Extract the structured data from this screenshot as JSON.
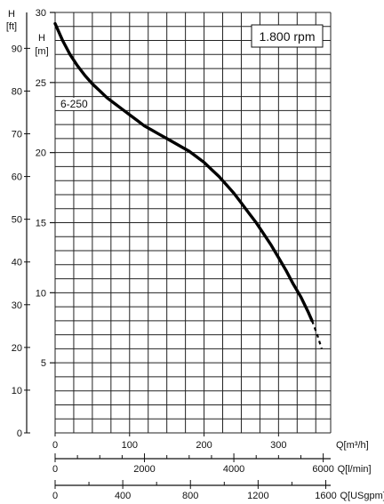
{
  "chart_data": {
    "type": "line",
    "rpm_label": "1.800 rpm",
    "series": [
      {
        "name": "6-250",
        "solid": [
          [
            0,
            29.2
          ],
          [
            10,
            28.0
          ],
          [
            20,
            27.0
          ],
          [
            30,
            26.2
          ],
          [
            40,
            25.5
          ],
          [
            50,
            24.9
          ],
          [
            60,
            24.4
          ],
          [
            70,
            23.9
          ],
          [
            80,
            23.5
          ],
          [
            90,
            23.1
          ],
          [
            100,
            22.7
          ],
          [
            110,
            22.3
          ],
          [
            120,
            21.9
          ],
          [
            130,
            21.6
          ],
          [
            140,
            21.3
          ],
          [
            150,
            21.0
          ],
          [
            160,
            20.7
          ],
          [
            170,
            20.4
          ],
          [
            180,
            20.1
          ],
          [
            190,
            19.7
          ],
          [
            200,
            19.3
          ],
          [
            210,
            18.8
          ],
          [
            220,
            18.3
          ],
          [
            230,
            17.7
          ],
          [
            240,
            17.1
          ],
          [
            250,
            16.4
          ],
          [
            260,
            15.7
          ],
          [
            270,
            15.0
          ],
          [
            280,
            14.2
          ],
          [
            290,
            13.4
          ],
          [
            300,
            12.5
          ],
          [
            310,
            11.6
          ],
          [
            320,
            10.6
          ],
          [
            330,
            9.7
          ],
          [
            340,
            8.6
          ],
          [
            345,
            8.0
          ]
        ],
        "dashed": [
          [
            345,
            8.0
          ],
          [
            352,
            7.0
          ],
          [
            358,
            6.0
          ]
        ]
      }
    ],
    "left_axes": [
      {
        "unit_lines": [
          "H",
          "[ft]"
        ],
        "ticks": [
          {
            "value": 0,
            "label": "0"
          },
          {
            "value": 10,
            "label": "10"
          },
          {
            "value": 20,
            "label": "20"
          },
          {
            "value": 30,
            "label": "30"
          },
          {
            "value": 40,
            "label": "40"
          },
          {
            "value": 50,
            "label": "50"
          },
          {
            "value": 60,
            "label": "60"
          },
          {
            "value": 70,
            "label": "70"
          },
          {
            "value": 80,
            "label": "80"
          },
          {
            "value": 90,
            "label": "90"
          }
        ],
        "range": [
          0,
          98.4
        ]
      },
      {
        "unit_lines": [
          "H",
          "[m]"
        ],
        "ticks": [
          {
            "value": 5,
            "label": "5"
          },
          {
            "value": 10,
            "label": "10"
          },
          {
            "value": 15,
            "label": "15"
          },
          {
            "value": 20,
            "label": "20"
          },
          {
            "value": 25,
            "label": "25"
          },
          {
            "value": 30,
            "label": "30"
          }
        ],
        "range": [
          0,
          30
        ]
      }
    ],
    "bottom_axes": [
      {
        "unit": "Q[m³/h]",
        "ticks": [
          {
            "value": 0,
            "label": "0"
          },
          {
            "value": 100,
            "label": "100"
          },
          {
            "value": 200,
            "label": "200"
          },
          {
            "value": 300,
            "label": "300"
          }
        ],
        "range": [
          0,
          370
        ],
        "grid_step": 25
      },
      {
        "unit": "Q[l/min]",
        "ticks": [
          {
            "value": 0,
            "label": "0"
          },
          {
            "value": 2000,
            "label": "2000"
          },
          {
            "value": 4000,
            "label": "4000"
          },
          {
            "value": 6000,
            "label": "6000"
          }
        ],
        "minor_step": 500,
        "range": [
          0,
          6166.7
        ]
      },
      {
        "unit": "Q[USgpm]",
        "ticks": [
          {
            "value": 0,
            "label": "0"
          },
          {
            "value": 400,
            "label": "400"
          },
          {
            "value": 800,
            "label": "800"
          },
          {
            "value": 1200,
            "label": "1200"
          },
          {
            "value": 1600,
            "label": "1600"
          }
        ],
        "minor_step": 200,
        "range": [
          0,
          1629
        ]
      }
    ],
    "grid": true
  }
}
